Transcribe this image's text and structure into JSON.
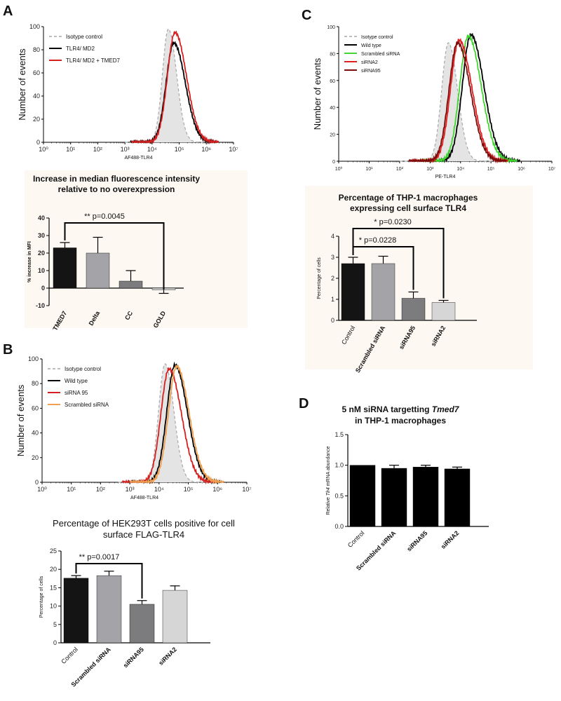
{
  "panels": {
    "A": {
      "label": "A"
    },
    "B": {
      "label": "B"
    },
    "C": {
      "label": "C"
    },
    "D": {
      "label": "D"
    }
  },
  "chart_data": [
    {
      "id": "A-hist",
      "type": "line",
      "ylabel": "Number of events",
      "xlabel": "AF488-TLR4",
      "x_scale": "log",
      "xlim": [
        1,
        10000000
      ],
      "ylim": [
        0,
        100
      ],
      "yticks": [
        "0",
        "20",
        "40",
        "60",
        "80",
        "100"
      ],
      "xticks": [
        "10⁰",
        "10¹",
        "10²",
        "10³",
        "10⁴",
        "10⁵",
        "10⁶",
        "10⁷"
      ],
      "legend_position": "top-left",
      "series": [
        {
          "name": "Isotype control",
          "color": "#a8a8a8",
          "style": "dashed-filled",
          "peak_x": 40000,
          "peak_y": 98
        },
        {
          "name": "TLR4/ MD2",
          "color": "#000000",
          "style": "solid",
          "peak_x": 63000,
          "peak_y": 86
        },
        {
          "name": "TLR4/ MD2 + TMED7",
          "color": "#d42020",
          "style": "solid",
          "peak_x": 70000,
          "peak_y": 95
        }
      ]
    },
    {
      "id": "A-bar",
      "type": "bar",
      "title": "Increase in median fluorescence intensity relative to no overexpression",
      "ylabel": "% increase in MFI",
      "categories": [
        "TMED7",
        "Delta",
        "CC",
        "GOLD"
      ],
      "values": [
        23,
        20,
        4,
        -1
      ],
      "errors": [
        3,
        9,
        6,
        2
      ],
      "colors": [
        "#141414",
        "#a4a4a8",
        "#7c7c7e",
        "#d6d6d6"
      ],
      "ylim": [
        -10,
        40
      ],
      "yticks": [
        "-10",
        "0",
        "10",
        "20",
        "30",
        "40"
      ],
      "significance": [
        {
          "pair": [
            "TMED7",
            "GOLD"
          ],
          "text": "** p=0.0045"
        }
      ]
    },
    {
      "id": "B-hist",
      "type": "line",
      "ylabel": "Number of events",
      "xlabel": "AF488-TLR4",
      "x_scale": "log",
      "xlim": [
        1,
        10000000
      ],
      "ylim": [
        0,
        100
      ],
      "yticks": [
        "0",
        "20",
        "40",
        "60",
        "80",
        "100"
      ],
      "xticks": [
        "10⁰",
        "10¹",
        "10²",
        "10³",
        "10⁴",
        "10⁵",
        "10⁶",
        "10⁷"
      ],
      "legend_position": "top-left",
      "series": [
        {
          "name": "Isotype control",
          "color": "#a8a8a8",
          "style": "dashed-filled",
          "peak_x": 16000,
          "peak_y": 96
        },
        {
          "name": "Wild type",
          "color": "#000000",
          "style": "solid",
          "peak_x": 35000,
          "peak_y": 95
        },
        {
          "name": "siRNA 95",
          "color": "#d42020",
          "style": "solid",
          "peak_x": 22000,
          "peak_y": 92
        },
        {
          "name": "Scrambled siRNA",
          "color": "#f0a050",
          "style": "solid",
          "peak_x": 40000,
          "peak_y": 94
        }
      ]
    },
    {
      "id": "B-bar",
      "type": "bar",
      "title": "Percentage of HEK293T cells positive for cell surface FLAG-TLR4",
      "ylabel": "Percentage of cells",
      "categories": [
        "Control",
        "Scrambled siRNA",
        "siRNA95",
        "siRNA2"
      ],
      "values": [
        17.6,
        18.3,
        10.5,
        14.3
      ],
      "errors": [
        0.7,
        1.2,
        1.0,
        1.2
      ],
      "colors": [
        "#141414",
        "#a4a4a8",
        "#7c7c7e",
        "#d6d6d6"
      ],
      "ylim": [
        0,
        25
      ],
      "yticks": [
        "0",
        "5",
        "10",
        "15",
        "20",
        "25"
      ],
      "significance": [
        {
          "pair": [
            "Control",
            "siRNA95"
          ],
          "text": "** p=0.0017"
        }
      ]
    },
    {
      "id": "C-hist",
      "type": "line",
      "ylabel": "Number of events",
      "xlabel": "PE-TLR4",
      "x_scale": "log",
      "xlim": [
        1,
        10000000
      ],
      "ylim": [
        0,
        100
      ],
      "yticks": [
        "0",
        "20",
        "40",
        "60",
        "80",
        "100"
      ],
      "xticks": [
        "10⁰",
        "10¹",
        "10²",
        "10³",
        "10⁴",
        "10⁵",
        "10⁶",
        "10⁷"
      ],
      "legend_position": "top-left",
      "series": [
        {
          "name": "Isotype control",
          "color": "#a8a8a8",
          "style": "dashed-filled",
          "peak_x": 4000,
          "peak_y": 88
        },
        {
          "name": "Wild type",
          "color": "#000000",
          "style": "solid",
          "peak_x": 22000,
          "peak_y": 94
        },
        {
          "name": "Scrambled siRNA",
          "color": "#40d830",
          "style": "solid",
          "peak_x": 18000,
          "peak_y": 93
        },
        {
          "name": "siRNA2",
          "color": "#e02020",
          "style": "solid",
          "peak_x": 9000,
          "peak_y": 90
        },
        {
          "name": "siRNA95",
          "color": "#7a0c0c",
          "style": "solid",
          "peak_x": 8000,
          "peak_y": 88
        }
      ]
    },
    {
      "id": "C-bar",
      "type": "bar",
      "title": "Percentage of THP-1 macrophages expressing cell surface TLR4",
      "ylabel": "Percentage of cells",
      "categories": [
        "Control",
        "Scrambled siRNA",
        "siRNA95",
        "siRNA2"
      ],
      "values": [
        2.7,
        2.7,
        1.05,
        0.85
      ],
      "errors": [
        0.3,
        0.35,
        0.3,
        0.1
      ],
      "colors": [
        "#141414",
        "#a4a4a8",
        "#7c7c7e",
        "#d6d6d6"
      ],
      "ylim": [
        0,
        4
      ],
      "yticks": [
        "0",
        "1",
        "2",
        "3",
        "4"
      ],
      "significance": [
        {
          "pair": [
            "Control",
            "siRNA95"
          ],
          "text": "* p=0.0228"
        },
        {
          "pair": [
            "Control",
            "siRNA2"
          ],
          "text": "* p=0.0230"
        }
      ]
    },
    {
      "id": "D-bar",
      "type": "bar",
      "title": "5 nM siRNA targetting Tmed7 in THP-1 macrophages",
      "ylabel": "Relative Tlr4 mRNA abundance",
      "categories": [
        "Control",
        "Scrambled siRNA",
        "siRNA95",
        "siRNA2"
      ],
      "values": [
        1.0,
        0.95,
        0.97,
        0.94
      ],
      "errors": [
        0,
        0.05,
        0.03,
        0.03
      ],
      "colors": [
        "#000000",
        "#000000",
        "#000000",
        "#000000"
      ],
      "ylim": [
        0,
        1.5
      ],
      "yticks": [
        "0.0",
        "0.5",
        "1.0",
        "1.5"
      ]
    }
  ],
  "text": {
    "A_title1": "Increase in median fluorescence intensity",
    "A_title2": "relative to no overexpression",
    "B_title1": "Percentage of HEK293T cells positive for cell",
    "B_title2": "surface FLAG-TLR4",
    "C_title1": "Percentage of THP-1 macrophages",
    "C_title2": "expressing cell surface TLR4",
    "D_title1a": "5 nM siRNA targetting ",
    "D_title1b": "Tmed7",
    "D_title2": "in THP-1 macrophages",
    "D_ylabel_a": "Relative ",
    "D_ylabel_b": "Tlr4",
    "D_ylabel_c": " mRNA abundance"
  }
}
